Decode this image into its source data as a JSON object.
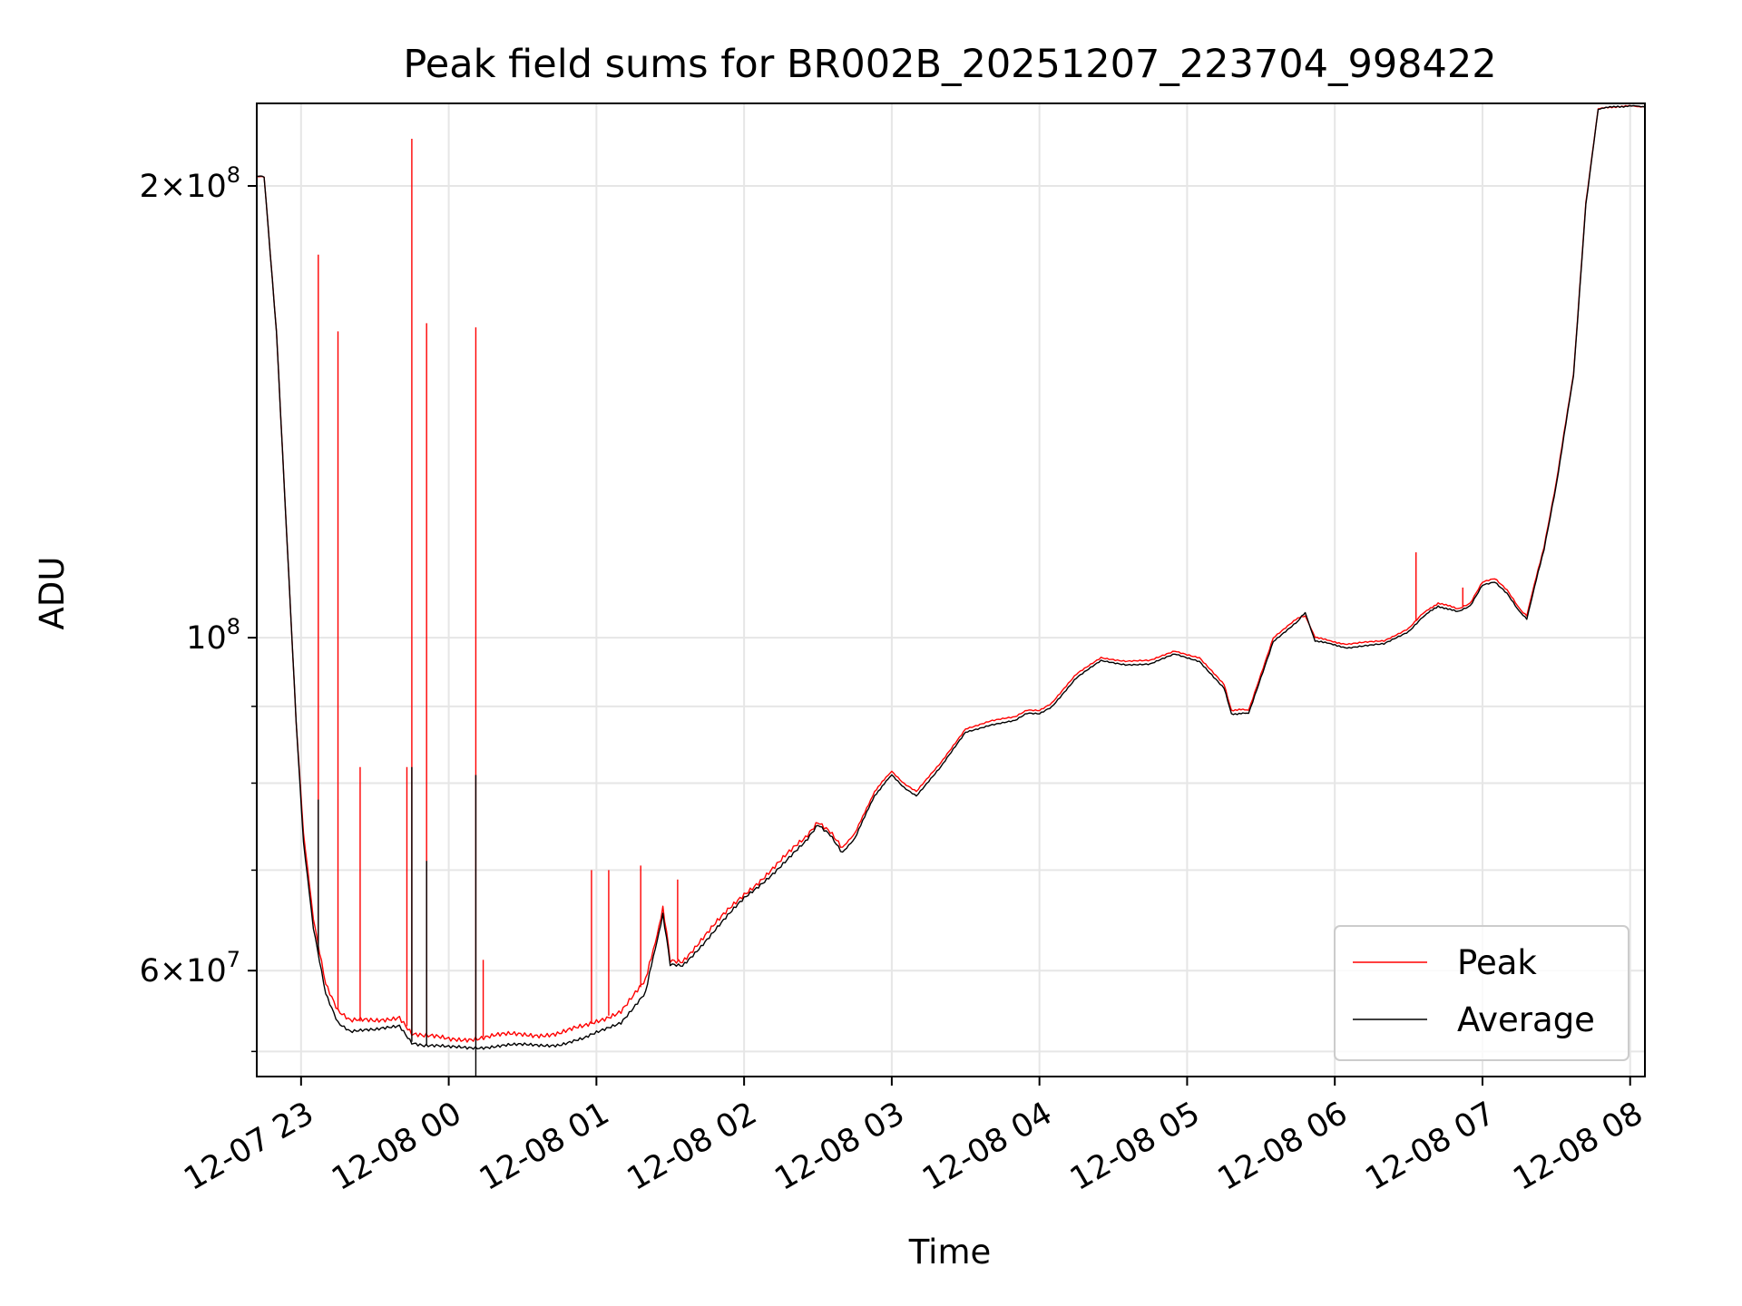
{
  "chart_data": {
    "type": "line",
    "title": "Peak field sums for BR002B_20251207_223704_998422",
    "xlabel": "Time",
    "ylabel": "ADU",
    "x_scale": "time",
    "y_scale": "log",
    "xlim": [
      "2025-12-07 22:42",
      "2025-12-08 08:06"
    ],
    "ylim": [
      51000000,
      227000000
    ],
    "grid": true,
    "legend_position": "lower right",
    "x_ticks": [
      {
        "t": "2025-12-07 23:00",
        "label": "12-07 23"
      },
      {
        "t": "2025-12-08 00:00",
        "label": "12-08 00"
      },
      {
        "t": "2025-12-08 01:00",
        "label": "12-08 01"
      },
      {
        "t": "2025-12-08 02:00",
        "label": "12-08 02"
      },
      {
        "t": "2025-12-08 03:00",
        "label": "12-08 03"
      },
      {
        "t": "2025-12-08 04:00",
        "label": "12-08 04"
      },
      {
        "t": "2025-12-08 05:00",
        "label": "12-08 05"
      },
      {
        "t": "2025-12-08 06:00",
        "label": "12-08 06"
      },
      {
        "t": "2025-12-08 07:00",
        "label": "12-08 07"
      },
      {
        "t": "2025-12-08 08:00",
        "label": "12-08 08"
      }
    ],
    "y_major_ticks": [
      {
        "value": 60000000,
        "mantissa": "6",
        "exponent": "7"
      },
      {
        "value": 100000000,
        "mantissa": "",
        "exponent": "8"
      },
      {
        "value": 200000000,
        "mantissa": "2",
        "exponent": "8"
      }
    ],
    "y_minor_ticks": [
      53000000,
      70000000,
      80000000,
      90000000
    ],
    "series": [
      {
        "name": "Peak",
        "color": "#ff0000",
        "points": [
          [
            "2025-12-07 22:42",
            203000000
          ],
          [
            "2025-12-07 22:45",
            203000000
          ],
          [
            "2025-12-07 22:50",
            160000000
          ],
          [
            "2025-12-07 22:55",
            110000000
          ],
          [
            "2025-12-07 22:58",
            88000000
          ],
          [
            "2025-12-07 23:01",
            74000000
          ],
          [
            "2025-12-07 23:05",
            65000000
          ],
          [
            "2025-12-07 23:10",
            59000000
          ],
          [
            "2025-12-07 23:15",
            56500000
          ],
          [
            "2025-12-07 23:20",
            55500000
          ],
          [
            "2025-12-07 23:30",
            55500000
          ],
          [
            "2025-12-07 23:40",
            56000000
          ],
          [
            "2025-12-07 23:45",
            54500000
          ],
          [
            "2025-12-07 23:50",
            54200000
          ],
          [
            "2025-12-08 00:00",
            54000000
          ],
          [
            "2025-12-08 00:15",
            54200000
          ],
          [
            "2025-12-08 00:30",
            54400000
          ],
          [
            "2025-12-08 00:45",
            54500000
          ],
          [
            "2025-12-08 00:55",
            55000000
          ],
          [
            "2025-12-08 01:10",
            56500000
          ],
          [
            "2025-12-08 01:20",
            59000000
          ],
          [
            "2025-12-08 01:27",
            66000000
          ],
          [
            "2025-12-08 01:30",
            61000000
          ],
          [
            "2025-12-08 01:35",
            61000000
          ],
          [
            "2025-12-08 01:45",
            63500000
          ],
          [
            "2025-12-08 02:00",
            67500000
          ],
          [
            "2025-12-08 02:15",
            71000000
          ],
          [
            "2025-12-08 02:25",
            73500000
          ],
          [
            "2025-12-08 02:30",
            75500000
          ],
          [
            "2025-12-08 02:35",
            74500000
          ],
          [
            "2025-12-08 02:40",
            72500000
          ],
          [
            "2025-12-08 02:45",
            74000000
          ],
          [
            "2025-12-08 02:53",
            79000000
          ],
          [
            "2025-12-08 03:00",
            81500000
          ],
          [
            "2025-12-08 03:05",
            80000000
          ],
          [
            "2025-12-08 03:10",
            79000000
          ],
          [
            "2025-12-08 03:20",
            82500000
          ],
          [
            "2025-12-08 03:30",
            87000000
          ],
          [
            "2025-12-08 03:40",
            88000000
          ],
          [
            "2025-12-08 03:50",
            88500000
          ],
          [
            "2025-12-08 03:55",
            89500000
          ],
          [
            "2025-12-08 04:00",
            89500000
          ],
          [
            "2025-12-08 04:05",
            90500000
          ],
          [
            "2025-12-08 04:15",
            94500000
          ],
          [
            "2025-12-08 04:25",
            97000000
          ],
          [
            "2025-12-08 04:35",
            96500000
          ],
          [
            "2025-12-08 04:45",
            96500000
          ],
          [
            "2025-12-08 04:55",
            98000000
          ],
          [
            "2025-12-08 05:05",
            97000000
          ],
          [
            "2025-12-08 05:15",
            93000000
          ],
          [
            "2025-12-08 05:18",
            89500000
          ],
          [
            "2025-12-08 05:25",
            89500000
          ],
          [
            "2025-12-08 05:35",
            100000000
          ],
          [
            "2025-12-08 05:45",
            103000000
          ],
          [
            "2025-12-08 05:48",
            103500000
          ],
          [
            "2025-12-08 05:52",
            100000000
          ],
          [
            "2025-12-08 06:05",
            99000000
          ],
          [
            "2025-12-08 06:20",
            99500000
          ],
          [
            "2025-12-08 06:30",
            101500000
          ],
          [
            "2025-12-08 06:35",
            103500000
          ],
          [
            "2025-12-08 06:42",
            105500000
          ],
          [
            "2025-12-08 06:50",
            104500000
          ],
          [
            "2025-12-08 06:55",
            105500000
          ],
          [
            "2025-12-08 07:00",
            109000000
          ],
          [
            "2025-12-08 07:05",
            109500000
          ],
          [
            "2025-12-08 07:10",
            107500000
          ],
          [
            "2025-12-08 07:15",
            104500000
          ],
          [
            "2025-12-08 07:18",
            103500000
          ],
          [
            "2025-12-08 07:25",
            115000000
          ],
          [
            "2025-12-08 07:30",
            127000000
          ],
          [
            "2025-12-08 07:37",
            150000000
          ],
          [
            "2025-12-08 07:42",
            195000000
          ],
          [
            "2025-12-08 07:47",
            225000000
          ],
          [
            "2025-12-08 07:55",
            226000000
          ],
          [
            "2025-12-08 08:06",
            226000000
          ]
        ],
        "spikes": [
          [
            "2025-12-07 23:07",
            180000000
          ],
          [
            "2025-12-07 23:15",
            160000000
          ],
          [
            "2025-12-07 23:24",
            82000000
          ],
          [
            "2025-12-07 23:43",
            82000000
          ],
          [
            "2025-12-07 23:45",
            215000000
          ],
          [
            "2025-12-07 23:51",
            162000000
          ],
          [
            "2025-12-08 00:11",
            161000000
          ],
          [
            "2025-12-08 00:14",
            61000000
          ],
          [
            "2025-12-08 00:58",
            70000000
          ],
          [
            "2025-12-08 01:05",
            70000000
          ],
          [
            "2025-12-08 01:18",
            70500000
          ],
          [
            "2025-12-08 01:33",
            69000000
          ],
          [
            "2025-12-08 06:33",
            114000000
          ],
          [
            "2025-12-08 06:52",
            108000000
          ]
        ]
      },
      {
        "name": "Average",
        "color": "#000000",
        "points": [
          [
            "2025-12-07 22:42",
            203000000
          ],
          [
            "2025-12-07 22:45",
            203000000
          ],
          [
            "2025-12-07 22:50",
            160000000
          ],
          [
            "2025-12-07 22:55",
            110000000
          ],
          [
            "2025-12-07 22:58",
            88000000
          ],
          [
            "2025-12-07 23:01",
            73000000
          ],
          [
            "2025-12-07 23:05",
            64000000
          ],
          [
            "2025-12-07 23:10",
            58000000
          ],
          [
            "2025-12-07 23:15",
            55500000
          ],
          [
            "2025-12-07 23:20",
            54700000
          ],
          [
            "2025-12-07 23:30",
            54700000
          ],
          [
            "2025-12-07 23:40",
            55200000
          ],
          [
            "2025-12-07 23:45",
            53800000
          ],
          [
            "2025-12-07 23:50",
            53500000
          ],
          [
            "2025-12-08 00:00",
            53300000
          ],
          [
            "2025-12-08 00:15",
            53400000
          ],
          [
            "2025-12-08 00:30",
            53500000
          ],
          [
            "2025-12-08 00:45",
            53600000
          ],
          [
            "2025-12-08 00:55",
            54000000
          ],
          [
            "2025-12-08 01:10",
            55500000
          ],
          [
            "2025-12-08 01:20",
            58000000
          ],
          [
            "2025-12-08 01:27",
            65500000
          ],
          [
            "2025-12-08 01:30",
            60500000
          ],
          [
            "2025-12-08 01:35",
            60500000
          ],
          [
            "2025-12-08 01:45",
            63000000
          ],
          [
            "2025-12-08 02:00",
            67000000
          ],
          [
            "2025-12-08 02:15",
            70500000
          ],
          [
            "2025-12-08 02:25",
            73000000
          ],
          [
            "2025-12-08 02:30",
            75000000
          ],
          [
            "2025-12-08 02:35",
            74000000
          ],
          [
            "2025-12-08 02:40",
            72000000
          ],
          [
            "2025-12-08 02:45",
            73500000
          ],
          [
            "2025-12-08 02:53",
            78500000
          ],
          [
            "2025-12-08 03:00",
            81000000
          ],
          [
            "2025-12-08 03:05",
            79500000
          ],
          [
            "2025-12-08 03:10",
            78500000
          ],
          [
            "2025-12-08 03:20",
            82000000
          ],
          [
            "2025-12-08 03:30",
            86500000
          ],
          [
            "2025-12-08 03:40",
            87500000
          ],
          [
            "2025-12-08 03:50",
            88000000
          ],
          [
            "2025-12-08 03:55",
            89000000
          ],
          [
            "2025-12-08 04:00",
            89000000
          ],
          [
            "2025-12-08 04:05",
            90000000
          ],
          [
            "2025-12-08 04:15",
            94000000
          ],
          [
            "2025-12-08 04:25",
            96500000
          ],
          [
            "2025-12-08 04:35",
            96000000
          ],
          [
            "2025-12-08 04:45",
            96000000
          ],
          [
            "2025-12-08 04:55",
            97500000
          ],
          [
            "2025-12-08 05:05",
            96500000
          ],
          [
            "2025-12-08 05:15",
            92500000
          ],
          [
            "2025-12-08 05:18",
            89000000
          ],
          [
            "2025-12-08 05:25",
            89000000
          ],
          [
            "2025-12-08 05:35",
            99500000
          ],
          [
            "2025-12-08 05:45",
            102500000
          ],
          [
            "2025-12-08 05:48",
            104000000
          ],
          [
            "2025-12-08 05:52",
            99500000
          ],
          [
            "2025-12-08 06:05",
            98500000
          ],
          [
            "2025-12-08 06:20",
            99000000
          ],
          [
            "2025-12-08 06:30",
            101000000
          ],
          [
            "2025-12-08 06:35",
            103000000
          ],
          [
            "2025-12-08 06:42",
            105000000
          ],
          [
            "2025-12-08 06:50",
            104000000
          ],
          [
            "2025-12-08 06:55",
            105000000
          ],
          [
            "2025-12-08 07:00",
            108500000
          ],
          [
            "2025-12-08 07:05",
            109000000
          ],
          [
            "2025-12-08 07:10",
            107000000
          ],
          [
            "2025-12-08 07:15",
            104000000
          ],
          [
            "2025-12-08 07:18",
            103000000
          ],
          [
            "2025-12-08 07:25",
            114500000
          ],
          [
            "2025-12-08 07:30",
            126500000
          ],
          [
            "2025-12-08 07:37",
            149500000
          ],
          [
            "2025-12-08 07:42",
            194500000
          ],
          [
            "2025-12-08 07:47",
            225000000
          ],
          [
            "2025-12-08 07:55",
            226000000
          ],
          [
            "2025-12-08 08:06",
            226000000
          ]
        ],
        "spikes": [
          [
            "2025-12-07 23:07",
            78000000
          ],
          [
            "2025-12-07 23:45",
            82000000
          ],
          [
            "2025-12-07 23:51",
            71000000
          ],
          [
            "2025-12-08 00:11",
            81000000
          ],
          [
            "2025-12-08 00:11",
            51000000
          ]
        ]
      }
    ]
  }
}
